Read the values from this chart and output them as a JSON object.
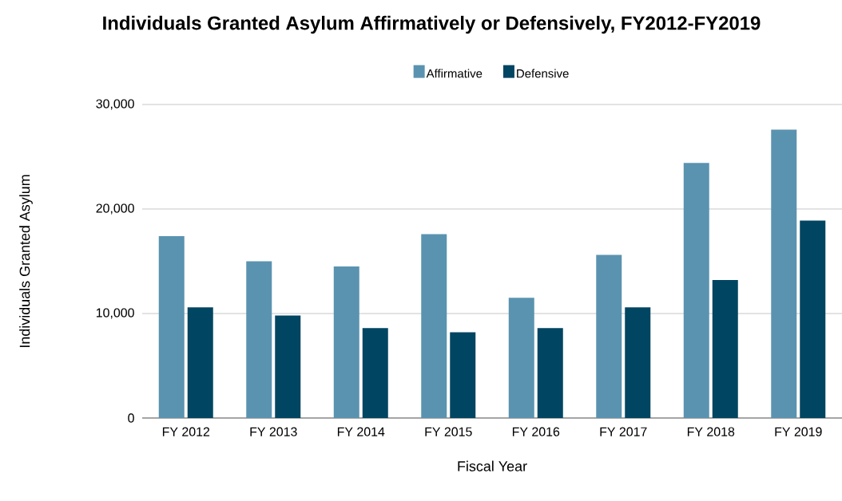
{
  "chart_data": {
    "type": "bar",
    "title": "Individuals Granted Asylum Affirmatively or Defensively, FY2012-FY2019",
    "xlabel": "Fiscal Year",
    "ylabel": "Individuals Granted Asylum",
    "categories": [
      "FY 2012",
      "FY 2013",
      "FY 2014",
      "FY 2015",
      "FY 2016",
      "FY 2017",
      "FY 2018",
      "FY 2019"
    ],
    "series": [
      {
        "name": "Affirmative",
        "color": "#5a93b0",
        "values": [
          17400,
          15000,
          14500,
          17600,
          11500,
          15600,
          24400,
          27600
        ]
      },
      {
        "name": "Defensive",
        "color": "#004561",
        "values": [
          10600,
          9800,
          8600,
          8200,
          8600,
          10600,
          13200,
          18900
        ]
      }
    ],
    "ylim": [
      0,
      30000
    ],
    "yticks": [
      0,
      {
        "value": 10000,
        "label": "10,000"
      },
      {
        "value": 20000,
        "label": "20,000"
      },
      {
        "value": 30000,
        "label": "30,000"
      }
    ],
    "grid": "y",
    "legend": "top"
  }
}
